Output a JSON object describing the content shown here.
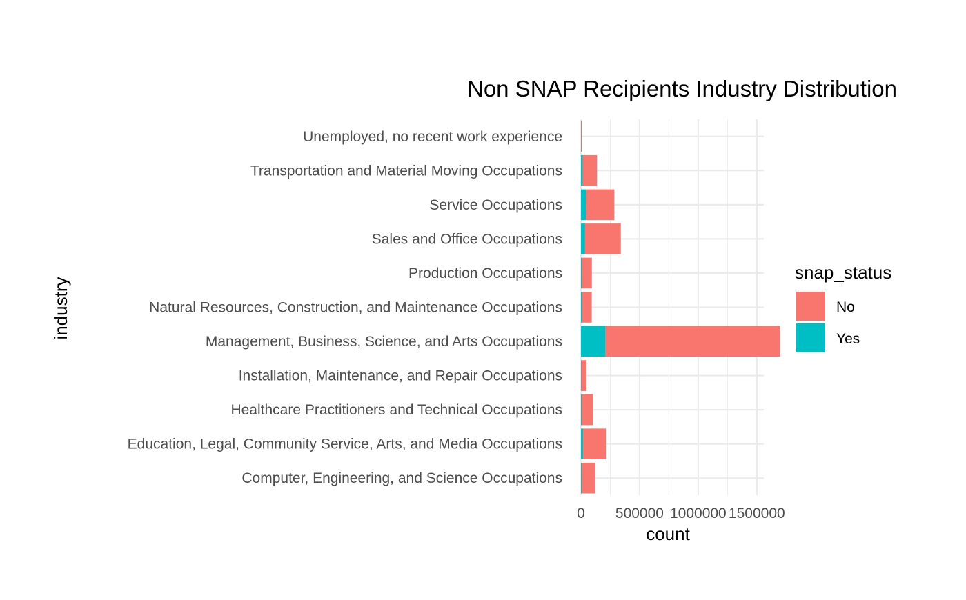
{
  "chart_data": {
    "type": "bar",
    "orientation": "horizontal",
    "stacked": true,
    "title": "Non SNAP Recipients Industry Distribution",
    "xlabel": "count",
    "ylabel": "industry",
    "categories": [
      "Computer, Engineering, and Science Occupations",
      "Education, Legal, Community Service, Arts, and Media Occupations",
      "Healthcare Practitioners and Technical Occupations",
      "Installation, Maintenance, and Repair Occupations",
      "Management, Business, Science, and Arts Occupations",
      "Natural Resources, Construction, and Maintenance Occupations",
      "Production Occupations",
      "Sales and Office Occupations",
      "Service Occupations",
      "Transportation and Material Moving Occupations",
      "Unemployed, no recent work experience"
    ],
    "series": [
      {
        "name": "No",
        "color": "#F8766D",
        "values": [
          115000,
          195000,
          98000,
          45000,
          1490000,
          82000,
          85000,
          305000,
          240000,
          122000,
          3000
        ]
      },
      {
        "name": "Yes",
        "color": "#00BFC4",
        "values": [
          7000,
          18000,
          6000,
          3000,
          210000,
          10000,
          8000,
          35000,
          45000,
          15000,
          2000
        ]
      }
    ],
    "xticks": [
      0,
      500000,
      1000000,
      1500000
    ],
    "xtick_labels": [
      "0",
      "500000",
      "1000000",
      "1500000"
    ],
    "xlim": [
      0,
      1560000
    ],
    "grid": true,
    "legend": {
      "title": "snap_status",
      "position": "right",
      "entries": [
        "No",
        "Yes"
      ]
    }
  }
}
